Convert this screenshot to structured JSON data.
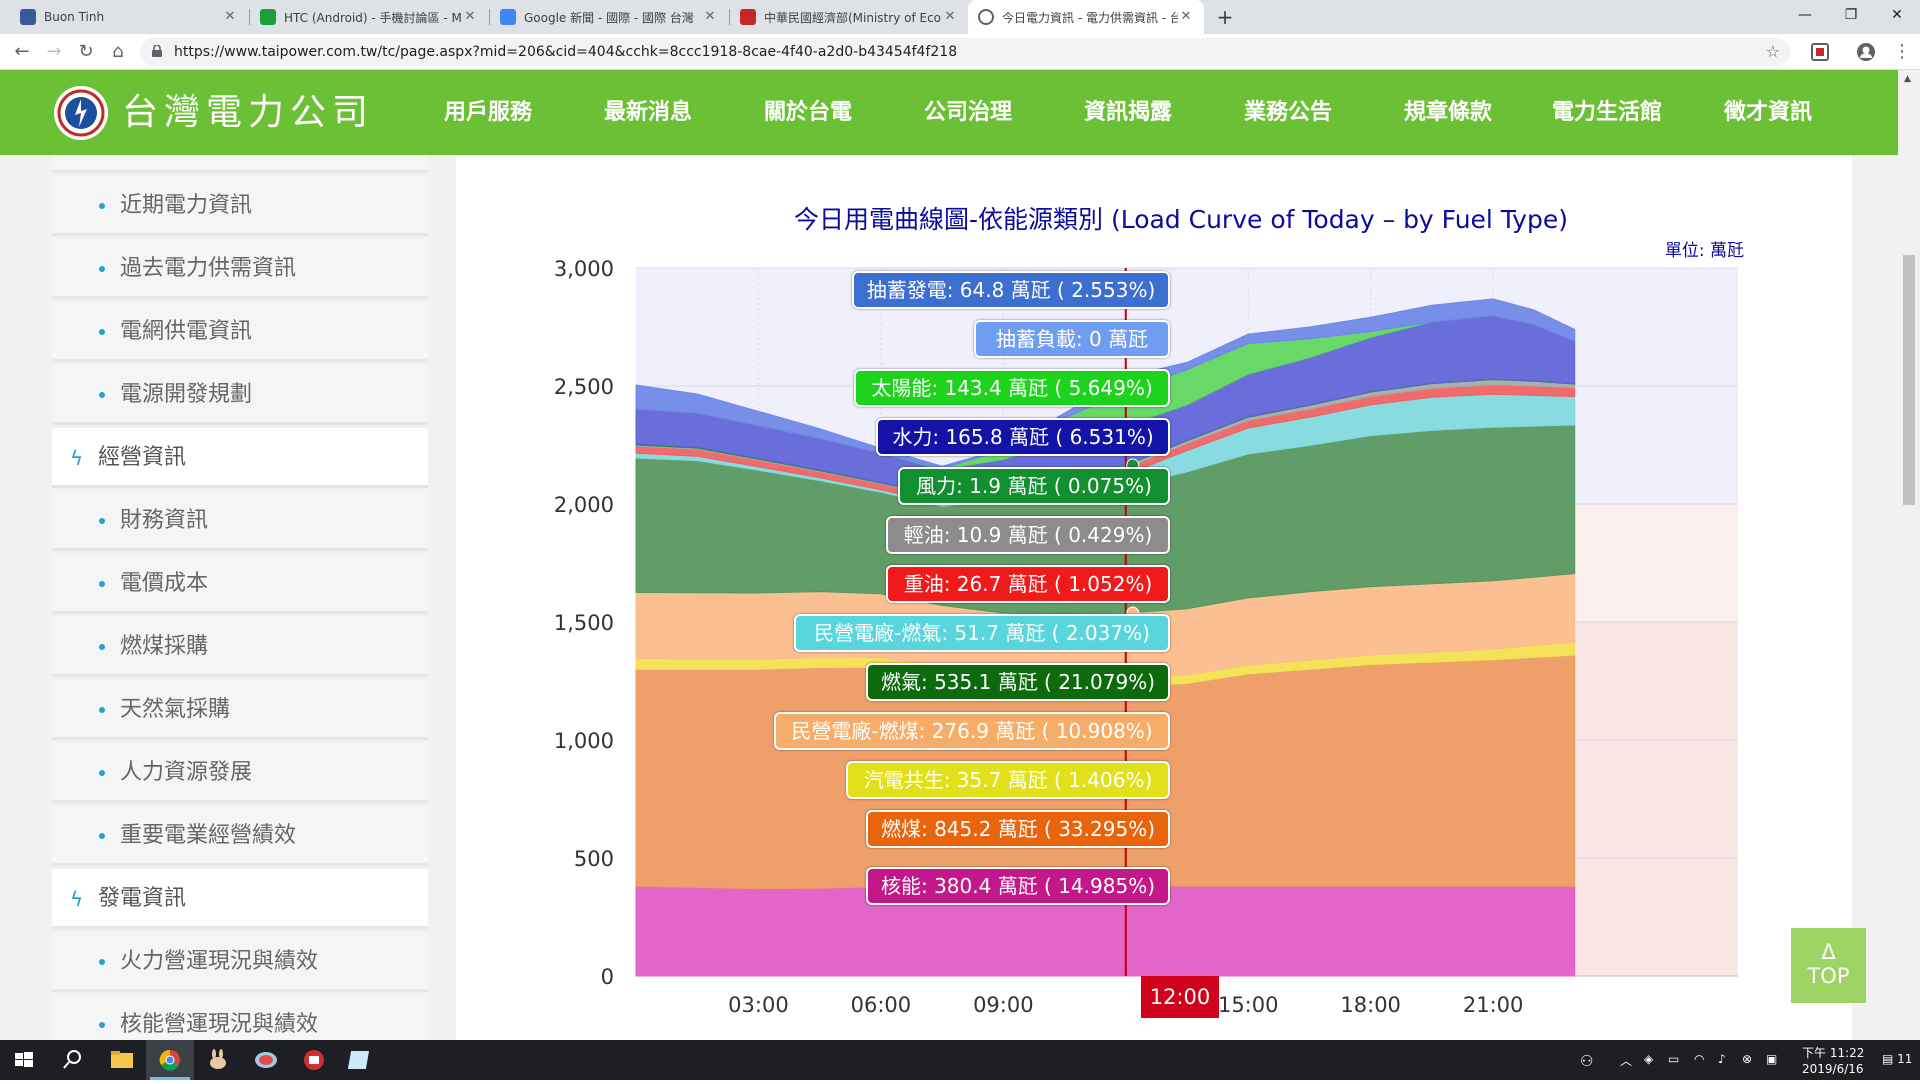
{
  "browser": {
    "tabs": [
      {
        "title": "Buon Tinh",
        "icon": "facebook-icon",
        "color": "#3b5998"
      },
      {
        "title": "HTC (Android) - 手機討論區 - M",
        "icon": "mobile01-icon",
        "color": "#1aa039"
      },
      {
        "title": "Google 新聞 - 國際 - 國際 台灣",
        "icon": "google-news-icon",
        "color": "#4285f4"
      },
      {
        "title": "中華民國經濟部(Ministry of Econ",
        "icon": "moea-icon",
        "color": "#c62828"
      },
      {
        "title": "今日電力資訊 - 電力供需資訊 - 台",
        "icon": "globe-icon",
        "color": "#5f6368"
      }
    ],
    "new_tab": "+",
    "url": "https://www.taipower.com.tw/tc/page.aspx?mid=206&cid=404&cchk=8ccc1918-8cae-4f40-a2d0-b43454f4f218",
    "bookmark_icon": "star-icon"
  },
  "site": {
    "logo_text": "台灣電力公司",
    "nav": [
      "用戶服務",
      "最新消息",
      "關於台電",
      "公司治理",
      "資訊揭露",
      "業務公告",
      "規章條款",
      "電力生活館",
      "徵才資訊"
    ],
    "active_nav": "資訊揭露",
    "brand_color": "#6cc035"
  },
  "sidebar": {
    "items": [
      {
        "label": "近期電力資訊",
        "type": "sub"
      },
      {
        "label": "過去電力供需資訊",
        "type": "sub"
      },
      {
        "label": "電網供電資訊",
        "type": "sub"
      },
      {
        "label": "電源開發規劃",
        "type": "sub"
      },
      {
        "label": "經營資訊",
        "type": "section"
      },
      {
        "label": "財務資訊",
        "type": "sub"
      },
      {
        "label": "電價成本",
        "type": "sub"
      },
      {
        "label": "燃煤採購",
        "type": "sub"
      },
      {
        "label": "天然氣採購",
        "type": "sub"
      },
      {
        "label": "人力資源發展",
        "type": "sub"
      },
      {
        "label": "重要電業經營績效",
        "type": "sub"
      },
      {
        "label": "發電資訊",
        "type": "section"
      },
      {
        "label": "火力營運現況與績效",
        "type": "sub"
      },
      {
        "label": "核能營運現況與績效",
        "type": "sub"
      }
    ]
  },
  "chart_data": {
    "type": "area",
    "stacked": true,
    "title": "今日用電曲線圖-依能源類別 (Load Curve of Today – by Fuel Type)",
    "unit_label": "單位: 萬瓩",
    "x_unit": "hour",
    "xlim": [
      0,
      27
    ],
    "ylim": [
      0,
      3000
    ],
    "y_ticks": [
      "0",
      "500",
      "1,000",
      "1,500",
      "2,000",
      "2,500",
      "3,000"
    ],
    "x_ticks": [
      "03:00",
      "06:00",
      "09:00",
      "12:00",
      "15:00",
      "18:00",
      "21:00"
    ],
    "cursor_time": "12:00",
    "x": [
      0,
      1.5,
      3,
      4.5,
      6,
      7.5,
      9,
      10.5,
      12,
      13.5,
      15,
      16.5,
      18,
      19.5,
      21,
      22,
      23
    ],
    "series": [
      {
        "name": "核能",
        "color": "#e05ac4",
        "values": [
          380,
          375,
          370,
          372,
          378,
          380,
          380,
          380,
          380,
          380,
          380,
          380,
          380,
          380,
          380,
          380,
          380
        ]
      },
      {
        "name": "燃煤",
        "color": "#ee9a5f",
        "values": [
          920,
          925,
          930,
          935,
          930,
          890,
          860,
          850,
          845,
          860,
          900,
          920,
          940,
          950,
          960,
          970,
          980
        ]
      },
      {
        "name": "汽電共生",
        "color": "#f2e24e",
        "values": [
          45,
          44,
          43,
          42,
          42,
          40,
          38,
          36,
          36,
          36,
          37,
          38,
          40,
          42,
          45,
          50,
          55
        ]
      },
      {
        "name": "民營電廠-燃煤",
        "color": "#fbbc8a",
        "values": [
          280,
          280,
          280,
          280,
          270,
          260,
          260,
          270,
          277,
          280,
          285,
          290,
          290,
          290,
          290,
          290,
          290
        ]
      },
      {
        "name": "燃氣",
        "color": "#55965c",
        "values": [
          570,
          560,
          520,
          470,
          430,
          420,
          480,
          520,
          535,
          580,
          610,
          620,
          640,
          650,
          650,
          640,
          630
        ]
      },
      {
        "name": "民營電廠-燃氣",
        "color": "#7fd9dc",
        "values": [
          20,
          18,
          15,
          12,
          10,
          12,
          25,
          40,
          52,
          90,
          110,
          120,
          130,
          140,
          140,
          130,
          120
        ]
      },
      {
        "name": "重油",
        "color": "#f0605e",
        "values": [
          30,
          30,
          28,
          26,
          25,
          25,
          26,
          27,
          27,
          30,
          32,
          34,
          36,
          38,
          40,
          40,
          38
        ]
      },
      {
        "name": "輕油",
        "color": "#a8a8a8",
        "values": [
          5,
          5,
          4,
          4,
          4,
          6,
          8,
          10,
          11,
          12,
          14,
          16,
          18,
          20,
          22,
          20,
          15
        ]
      },
      {
        "name": "風力",
        "color": "#1f8f3a",
        "values": [
          4,
          4,
          3,
          3,
          2,
          2,
          2,
          2,
          2,
          2,
          2,
          2,
          2,
          2,
          2,
          2,
          2
        ]
      },
      {
        "name": "水力",
        "color": "#5d63d8",
        "values": [
          150,
          145,
          140,
          135,
          125,
          110,
          110,
          130,
          166,
          150,
          180,
          200,
          230,
          260,
          270,
          240,
          180
        ]
      },
      {
        "name": "太陽能",
        "color": "#5cd65c",
        "values": [
          0,
          0,
          0,
          0,
          0,
          5,
          40,
          100,
          143,
          150,
          130,
          80,
          25,
          0,
          0,
          0,
          0
        ]
      },
      {
        "name": "抽蓄負載",
        "color": "#8fa6f2",
        "values": [
          0,
          0,
          0,
          0,
          0,
          0,
          0,
          0,
          0,
          0,
          0,
          0,
          0,
          0,
          0,
          0,
          0
        ]
      },
      {
        "name": "抽蓄發電",
        "color": "#6e87e8",
        "values": [
          100,
          80,
          60,
          40,
          20,
          10,
          5,
          20,
          65,
          30,
          40,
          50,
          60,
          70,
          70,
          60,
          50
        ]
      }
    ],
    "tooltip": [
      {
        "text": "抽蓄發電: 64.8 萬瓩 ( 2.553%)",
        "bg": "#3d6fd1"
      },
      {
        "text": "抽蓄負載: 0 萬瓩",
        "bg": "#6f9ef1"
      },
      {
        "text": "太陽能: 143.4 萬瓩 ( 5.649%)",
        "bg": "#1ed31e"
      },
      {
        "text": "水力: 165.8 萬瓩 ( 6.531%)",
        "bg": "#1313a8"
      },
      {
        "text": "風力: 1.9 萬瓩 ( 0.075%)",
        "bg": "#128f2e"
      },
      {
        "text": "輕油: 10.9 萬瓩 ( 0.429%)",
        "bg": "#8c8c8c"
      },
      {
        "text": "重油: 26.7 萬瓩 ( 1.052%)",
        "bg": "#f01a1a"
      },
      {
        "text": "民營電廠-燃氣: 51.7 萬瓩 ( 2.037%)",
        "bg": "#59d6dc"
      },
      {
        "text": "燃氣: 535.1 萬瓩 ( 21.079%)",
        "bg": "#0d6b0d"
      },
      {
        "text": "民營電廠-燃煤: 276.9 萬瓩 ( 10.908%)",
        "bg": "#f7ad6a"
      },
      {
        "text": "汽電共生: 35.7 萬瓩 ( 1.406%)",
        "bg": "#e2e01a"
      },
      {
        "text": "燃煤: 845.2 萬瓩 ( 33.295%)",
        "bg": "#e8650d"
      },
      {
        "text": "核能: 380.4 萬瓩 ( 14.985%)",
        "bg": "#c3188a"
      }
    ]
  },
  "top_button": {
    "arrow": "Δ",
    "label": "TOP"
  },
  "taskbar": {
    "time": "下午 11:22",
    "date": "2019/6/16",
    "notification_count": "11"
  }
}
